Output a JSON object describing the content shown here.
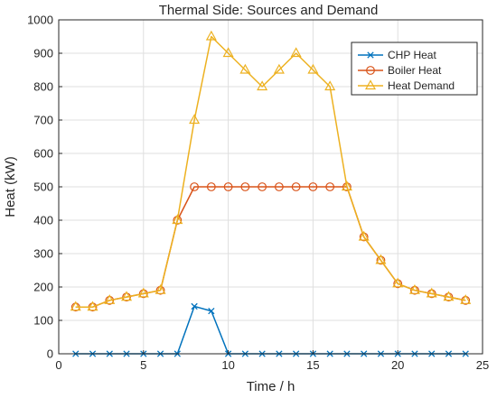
{
  "chart_data": {
    "type": "line",
    "title": "Thermal Side: Sources and Demand",
    "xlabel": "Time / h",
    "ylabel": "Heat (kW)",
    "xlim": [
      0,
      25
    ],
    "ylim": [
      0,
      1000
    ],
    "xticks": [
      0,
      5,
      10,
      15,
      20,
      25
    ],
    "yticks": [
      0,
      100,
      200,
      300,
      400,
      500,
      600,
      700,
      800,
      900,
      1000
    ],
    "grid": true,
    "legend_position": "top-right",
    "x": [
      1,
      2,
      3,
      4,
      5,
      6,
      7,
      8,
      9,
      10,
      11,
      12,
      13,
      14,
      15,
      16,
      17,
      18,
      19,
      20,
      21,
      22,
      23,
      24
    ],
    "series": [
      {
        "name": "CHP Heat",
        "marker": "x",
        "color": "#0072BD",
        "values": [
          0,
          0,
          0,
          0,
          0,
          0,
          0,
          142,
          128,
          0,
          0,
          0,
          0,
          0,
          0,
          0,
          0,
          0,
          0,
          0,
          0,
          0,
          0,
          0
        ]
      },
      {
        "name": "Boiler Heat",
        "marker": "circle",
        "color": "#D95319",
        "values": [
          140,
          140,
          160,
          170,
          180,
          190,
          400,
          500,
          500,
          500,
          500,
          500,
          500,
          500,
          500,
          500,
          500,
          350,
          280,
          210,
          190,
          180,
          170,
          160
        ]
      },
      {
        "name": "Heat Demand",
        "marker": "triangle",
        "color": "#EDB120",
        "values": [
          140,
          140,
          160,
          170,
          180,
          190,
          400,
          700,
          950,
          900,
          850,
          800,
          850,
          900,
          850,
          800,
          500,
          350,
          280,
          210,
          190,
          180,
          170,
          160
        ]
      }
    ]
  }
}
